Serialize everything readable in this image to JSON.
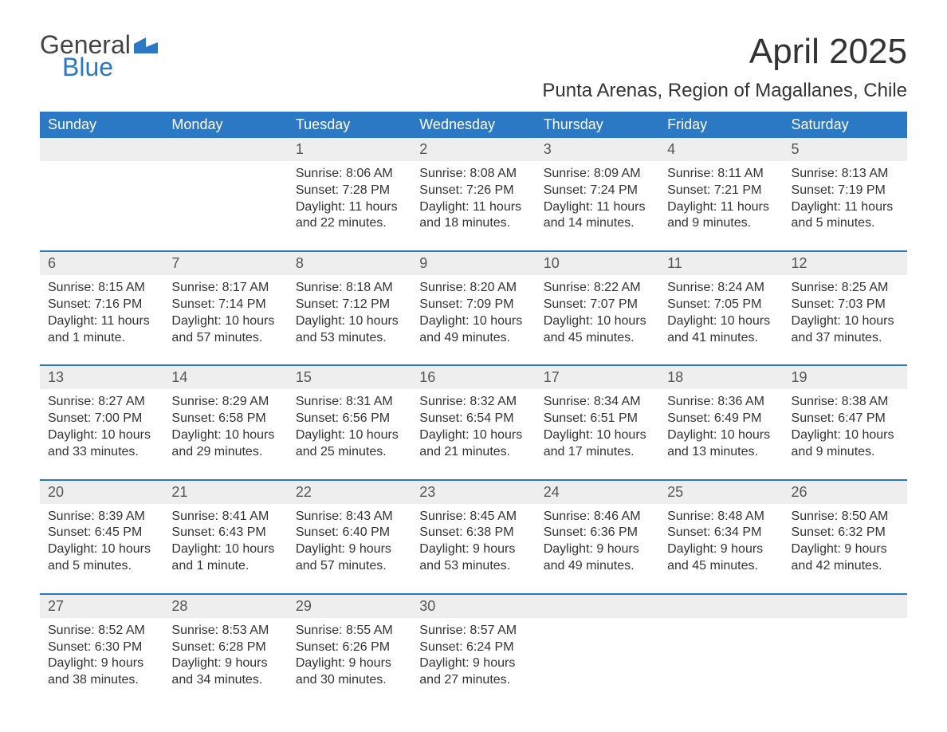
{
  "logo": {
    "word1": "General",
    "word2": "Blue"
  },
  "title": "April 2025",
  "location": "Punta Arenas, Region of Magallanes, Chile",
  "colors": {
    "header_bg": "#2b78c4",
    "header_text": "#ffffff",
    "daynum_bg": "#eeeeee",
    "rule": "#2b78c4",
    "body_text": "#333333",
    "logo_blue": "#2b78c4"
  },
  "day_headers": [
    "Sunday",
    "Monday",
    "Tuesday",
    "Wednesday",
    "Thursday",
    "Friday",
    "Saturday"
  ],
  "weeks": [
    [
      null,
      null,
      {
        "n": "1",
        "sr": "Sunrise: 8:06 AM",
        "ss": "Sunset: 7:28 PM",
        "d1": "Daylight: 11 hours",
        "d2": "and 22 minutes."
      },
      {
        "n": "2",
        "sr": "Sunrise: 8:08 AM",
        "ss": "Sunset: 7:26 PM",
        "d1": "Daylight: 11 hours",
        "d2": "and 18 minutes."
      },
      {
        "n": "3",
        "sr": "Sunrise: 8:09 AM",
        "ss": "Sunset: 7:24 PM",
        "d1": "Daylight: 11 hours",
        "d2": "and 14 minutes."
      },
      {
        "n": "4",
        "sr": "Sunrise: 8:11 AM",
        "ss": "Sunset: 7:21 PM",
        "d1": "Daylight: 11 hours",
        "d2": "and 9 minutes."
      },
      {
        "n": "5",
        "sr": "Sunrise: 8:13 AM",
        "ss": "Sunset: 7:19 PM",
        "d1": "Daylight: 11 hours",
        "d2": "and 5 minutes."
      }
    ],
    [
      {
        "n": "6",
        "sr": "Sunrise: 8:15 AM",
        "ss": "Sunset: 7:16 PM",
        "d1": "Daylight: 11 hours",
        "d2": "and 1 minute."
      },
      {
        "n": "7",
        "sr": "Sunrise: 8:17 AM",
        "ss": "Sunset: 7:14 PM",
        "d1": "Daylight: 10 hours",
        "d2": "and 57 minutes."
      },
      {
        "n": "8",
        "sr": "Sunrise: 8:18 AM",
        "ss": "Sunset: 7:12 PM",
        "d1": "Daylight: 10 hours",
        "d2": "and 53 minutes."
      },
      {
        "n": "9",
        "sr": "Sunrise: 8:20 AM",
        "ss": "Sunset: 7:09 PM",
        "d1": "Daylight: 10 hours",
        "d2": "and 49 minutes."
      },
      {
        "n": "10",
        "sr": "Sunrise: 8:22 AM",
        "ss": "Sunset: 7:07 PM",
        "d1": "Daylight: 10 hours",
        "d2": "and 45 minutes."
      },
      {
        "n": "11",
        "sr": "Sunrise: 8:24 AM",
        "ss": "Sunset: 7:05 PM",
        "d1": "Daylight: 10 hours",
        "d2": "and 41 minutes."
      },
      {
        "n": "12",
        "sr": "Sunrise: 8:25 AM",
        "ss": "Sunset: 7:03 PM",
        "d1": "Daylight: 10 hours",
        "d2": "and 37 minutes."
      }
    ],
    [
      {
        "n": "13",
        "sr": "Sunrise: 8:27 AM",
        "ss": "Sunset: 7:00 PM",
        "d1": "Daylight: 10 hours",
        "d2": "and 33 minutes."
      },
      {
        "n": "14",
        "sr": "Sunrise: 8:29 AM",
        "ss": "Sunset: 6:58 PM",
        "d1": "Daylight: 10 hours",
        "d2": "and 29 minutes."
      },
      {
        "n": "15",
        "sr": "Sunrise: 8:31 AM",
        "ss": "Sunset: 6:56 PM",
        "d1": "Daylight: 10 hours",
        "d2": "and 25 minutes."
      },
      {
        "n": "16",
        "sr": "Sunrise: 8:32 AM",
        "ss": "Sunset: 6:54 PM",
        "d1": "Daylight: 10 hours",
        "d2": "and 21 minutes."
      },
      {
        "n": "17",
        "sr": "Sunrise: 8:34 AM",
        "ss": "Sunset: 6:51 PM",
        "d1": "Daylight: 10 hours",
        "d2": "and 17 minutes."
      },
      {
        "n": "18",
        "sr": "Sunrise: 8:36 AM",
        "ss": "Sunset: 6:49 PM",
        "d1": "Daylight: 10 hours",
        "d2": "and 13 minutes."
      },
      {
        "n": "19",
        "sr": "Sunrise: 8:38 AM",
        "ss": "Sunset: 6:47 PM",
        "d1": "Daylight: 10 hours",
        "d2": "and 9 minutes."
      }
    ],
    [
      {
        "n": "20",
        "sr": "Sunrise: 8:39 AM",
        "ss": "Sunset: 6:45 PM",
        "d1": "Daylight: 10 hours",
        "d2": "and 5 minutes."
      },
      {
        "n": "21",
        "sr": "Sunrise: 8:41 AM",
        "ss": "Sunset: 6:43 PM",
        "d1": "Daylight: 10 hours",
        "d2": "and 1 minute."
      },
      {
        "n": "22",
        "sr": "Sunrise: 8:43 AM",
        "ss": "Sunset: 6:40 PM",
        "d1": "Daylight: 9 hours",
        "d2": "and 57 minutes."
      },
      {
        "n": "23",
        "sr": "Sunrise: 8:45 AM",
        "ss": "Sunset: 6:38 PM",
        "d1": "Daylight: 9 hours",
        "d2": "and 53 minutes."
      },
      {
        "n": "24",
        "sr": "Sunrise: 8:46 AM",
        "ss": "Sunset: 6:36 PM",
        "d1": "Daylight: 9 hours",
        "d2": "and 49 minutes."
      },
      {
        "n": "25",
        "sr": "Sunrise: 8:48 AM",
        "ss": "Sunset: 6:34 PM",
        "d1": "Daylight: 9 hours",
        "d2": "and 45 minutes."
      },
      {
        "n": "26",
        "sr": "Sunrise: 8:50 AM",
        "ss": "Sunset: 6:32 PM",
        "d1": "Daylight: 9 hours",
        "d2": "and 42 minutes."
      }
    ],
    [
      {
        "n": "27",
        "sr": "Sunrise: 8:52 AM",
        "ss": "Sunset: 6:30 PM",
        "d1": "Daylight: 9 hours",
        "d2": "and 38 minutes."
      },
      {
        "n": "28",
        "sr": "Sunrise: 8:53 AM",
        "ss": "Sunset: 6:28 PM",
        "d1": "Daylight: 9 hours",
        "d2": "and 34 minutes."
      },
      {
        "n": "29",
        "sr": "Sunrise: 8:55 AM",
        "ss": "Sunset: 6:26 PM",
        "d1": "Daylight: 9 hours",
        "d2": "and 30 minutes."
      },
      {
        "n": "30",
        "sr": "Sunrise: 8:57 AM",
        "ss": "Sunset: 6:24 PM",
        "d1": "Daylight: 9 hours",
        "d2": "and 27 minutes."
      },
      null,
      null,
      null
    ]
  ]
}
